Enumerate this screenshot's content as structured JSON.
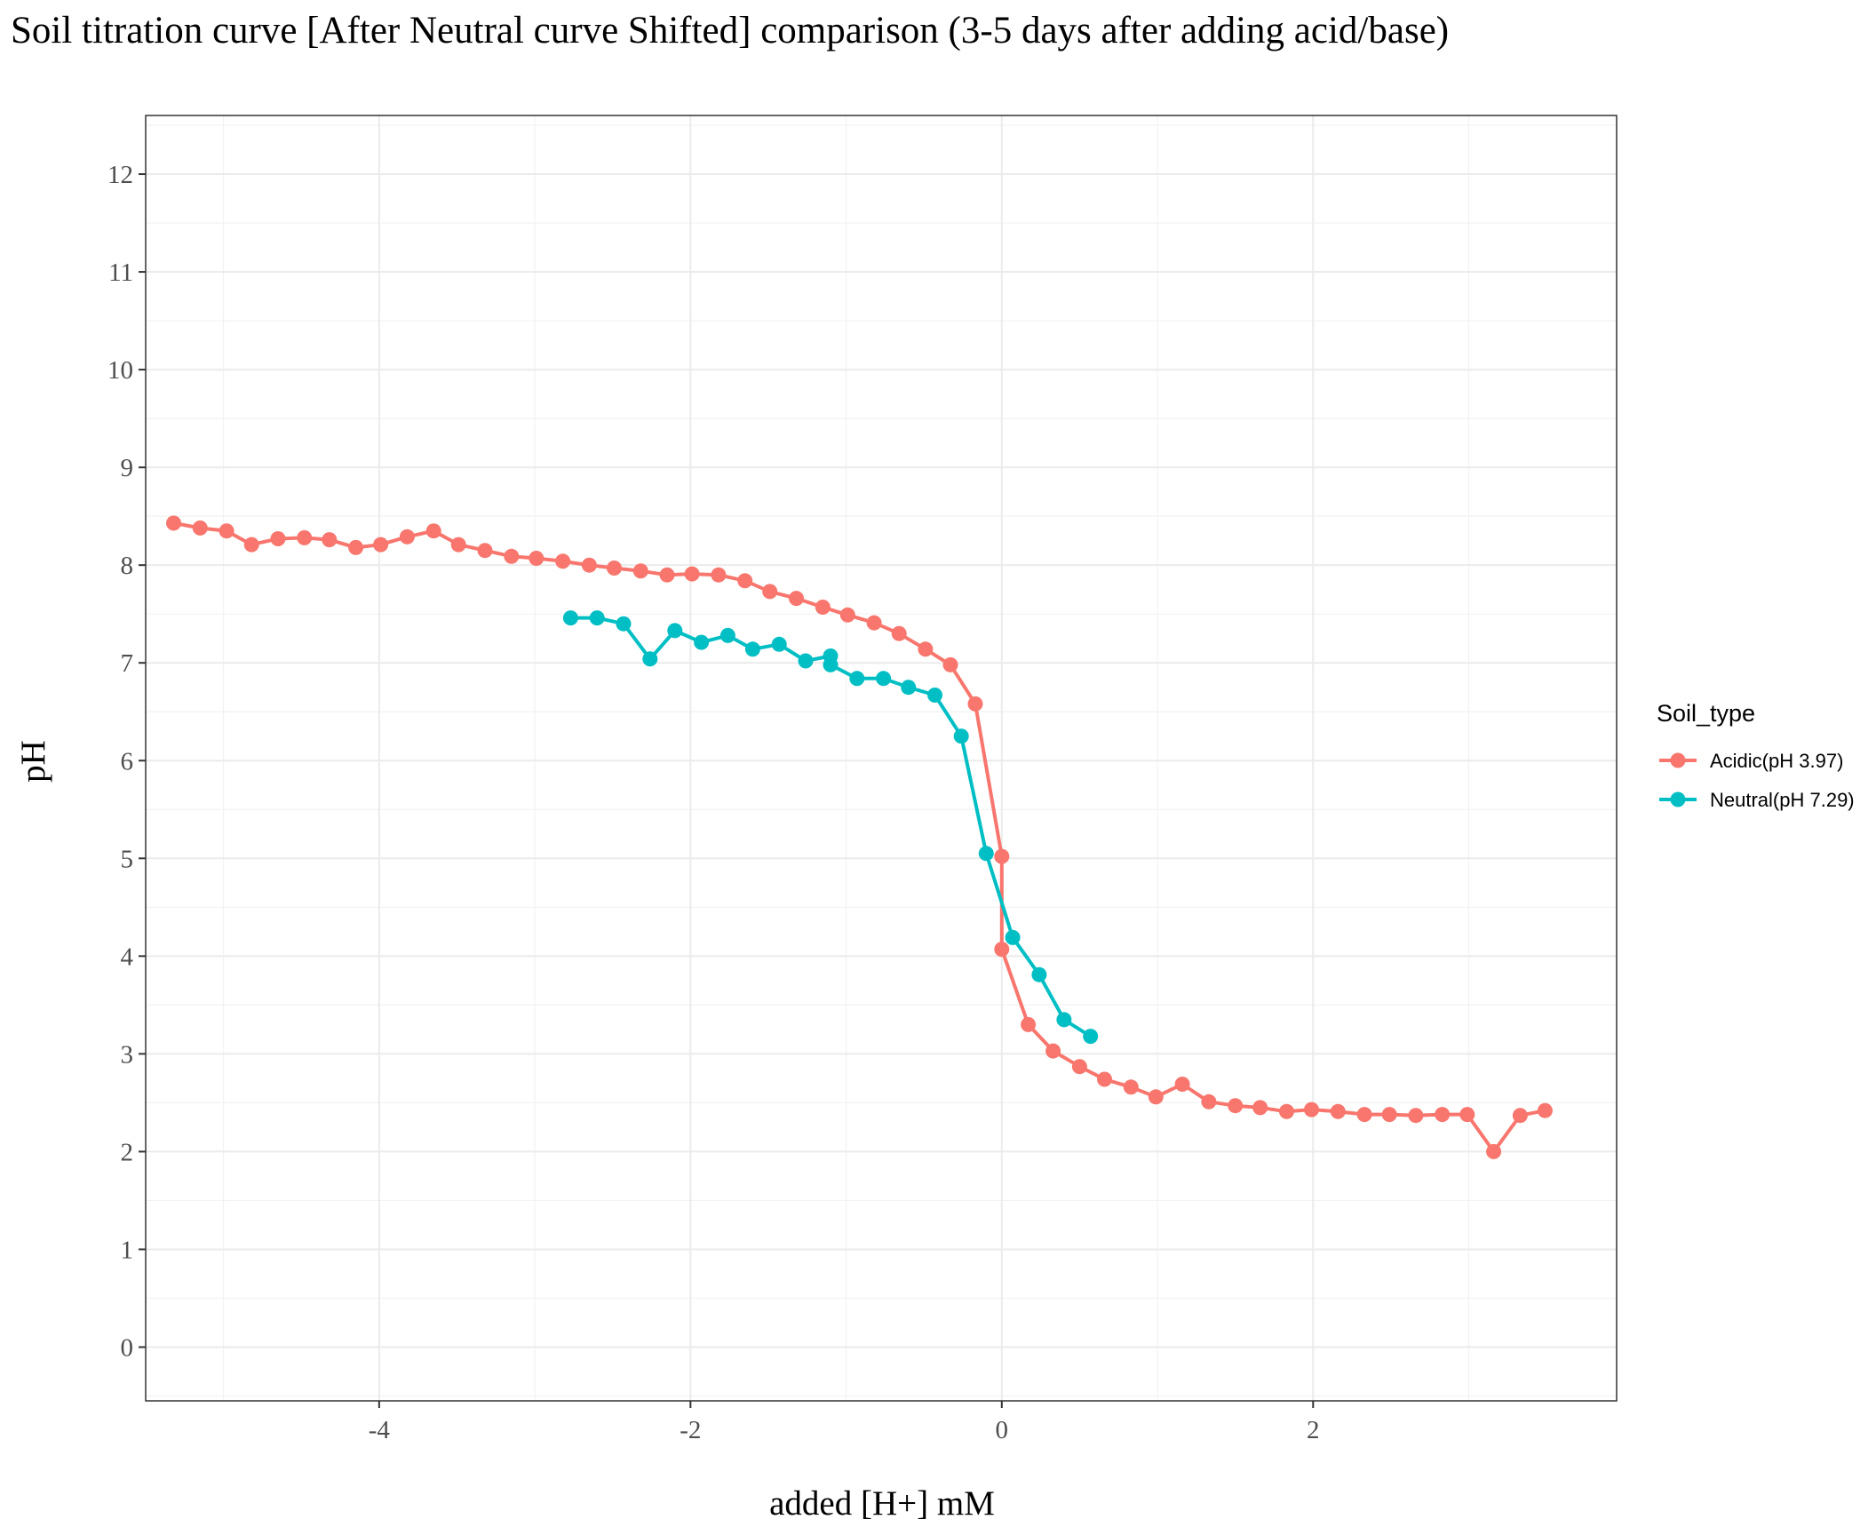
{
  "chart_data": {
    "type": "line",
    "title": "Soil titration curve [After Neutral curve Shifted] comparison (3-5 days after adding acid/base)",
    "xlabel": "added [H+] mM",
    "ylabel": "pH",
    "xlim": [
      -5.5,
      3.95
    ],
    "ylim": [
      -0.55,
      12.6
    ],
    "xticks": [
      -4,
      -2,
      0,
      2
    ],
    "yticks": [
      0,
      1,
      2,
      3,
      4,
      5,
      6,
      7,
      8,
      9,
      10,
      11,
      12
    ],
    "grid": true,
    "legend": {
      "title": "Soil_type",
      "position": "right"
    },
    "series": [
      {
        "name": "Acidic(pH 3.97)",
        "color": "#F8766D",
        "x": [
          -5.32,
          -5.15,
          -4.98,
          -4.82,
          -4.65,
          -4.48,
          -4.32,
          -4.15,
          -3.99,
          -3.82,
          -3.65,
          -3.49,
          -3.32,
          -3.15,
          -2.99,
          -2.82,
          -2.65,
          -2.49,
          -2.32,
          -2.15,
          -1.99,
          -1.82,
          -1.65,
          -1.49,
          -1.32,
          -1.15,
          -0.99,
          -0.82,
          -0.66,
          -0.49,
          -0.33,
          -0.17,
          0.0,
          0.0,
          0.17,
          0.33,
          0.5,
          0.66,
          0.83,
          0.99,
          1.16,
          1.33,
          1.5,
          1.66,
          1.83,
          1.99,
          2.16,
          2.33,
          2.49,
          2.66,
          2.83,
          2.99,
          3.16,
          3.33,
          3.49
        ],
        "y": [
          8.43,
          8.38,
          8.35,
          8.21,
          8.27,
          8.28,
          8.26,
          8.18,
          8.21,
          8.29,
          8.35,
          8.21,
          8.15,
          8.09,
          8.07,
          8.04,
          8.0,
          7.97,
          7.94,
          7.9,
          7.91,
          7.9,
          7.84,
          7.73,
          7.66,
          7.57,
          7.49,
          7.41,
          7.3,
          7.14,
          6.98,
          6.58,
          5.02,
          4.07,
          3.3,
          3.03,
          2.87,
          2.74,
          2.66,
          2.56,
          2.69,
          2.51,
          2.47,
          2.45,
          2.41,
          2.43,
          2.41,
          2.38,
          2.38,
          2.37,
          2.38,
          2.38,
          2.0,
          2.37,
          2.42
        ]
      },
      {
        "name": "Neutral(pH 7.29)",
        "color": "#00BFC4",
        "x": [
          -2.77,
          -2.6,
          -2.43,
          -2.26,
          -2.1,
          -1.93,
          -1.76,
          -1.6,
          -1.43,
          -1.26,
          -1.1,
          -1.1,
          -0.93,
          -0.76,
          -0.6,
          -0.43,
          -0.26,
          -0.1,
          0.07,
          0.24,
          0.4,
          0.57
        ],
        "y": [
          7.46,
          7.46,
          7.4,
          7.04,
          7.33,
          7.21,
          7.28,
          7.14,
          7.19,
          7.02,
          7.07,
          6.98,
          6.84,
          6.84,
          6.75,
          6.67,
          6.25,
          5.05,
          4.19,
          3.81,
          3.35,
          3.18
        ]
      }
    ]
  }
}
